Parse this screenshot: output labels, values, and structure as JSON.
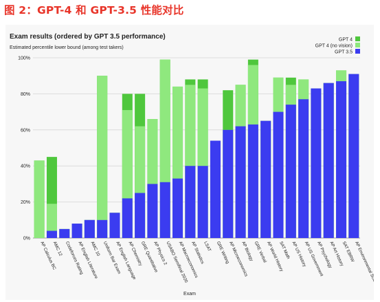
{
  "figure_title": "图 2：GPT-4 和 GPT-3.5 性能对比",
  "chart_data": {
    "type": "bar",
    "title": "Exam results (ordered by GPT 3.5 performance)",
    "subtitle": "Estimated percentile lower bound (among test takers)",
    "xlabel": "Exam",
    "ylabel": "",
    "ylim": [
      0,
      100
    ],
    "yticks": [
      "0%",
      "20%",
      "40%",
      "60%",
      "80%",
      "100%"
    ],
    "legend_position": "top-right",
    "colors": {
      "GPT 4": "#4fc73d",
      "GPT 4 (no vision)": "#8fe87e",
      "GPT 3.5": "#3b3cf0"
    },
    "categories": [
      "AP Calculus BC",
      "AMC 12",
      "Codeforces Rating",
      "AP English Literature",
      "AMC 10",
      "Uniform Bar Exam",
      "AP English Language",
      "AP Chemistry",
      "GRE Quantitative",
      "AP Physics 2",
      "USABO Semifinal 2020",
      "AP Macroeconomics",
      "AP Statistics",
      "LSAT",
      "GRE Writing",
      "AP Microeconomics",
      "AP Biology",
      "GRE Verbal",
      "AP World History",
      "SAT Math",
      "AP US History",
      "AP US Government",
      "AP Psychology",
      "AP Art History",
      "SAT EBRW",
      "AP Environmental Science"
    ],
    "series": [
      {
        "name": "GPT 4",
        "values": [
          43,
          45,
          5,
          8,
          10,
          90,
          14,
          80,
          80,
          66,
          99,
          84,
          88,
          88,
          54,
          82,
          85,
          99,
          65,
          89,
          89,
          88,
          83,
          86,
          93,
          91
        ]
      },
      {
        "name": "GPT 4 (no vision)",
        "values": [
          43,
          19,
          5,
          8,
          10,
          90,
          14,
          71,
          62,
          66,
          99,
          84,
          85,
          83,
          54,
          60,
          85,
          96,
          65,
          89,
          85,
          88,
          83,
          86,
          93,
          91
        ]
      },
      {
        "name": "GPT 3.5",
        "values": [
          0,
          4,
          5,
          8,
          10,
          10,
          14,
          22,
          25,
          30,
          31,
          33,
          40,
          40,
          54,
          60,
          62,
          63,
          65,
          70,
          74,
          77,
          83,
          86,
          87,
          91
        ]
      }
    ]
  }
}
